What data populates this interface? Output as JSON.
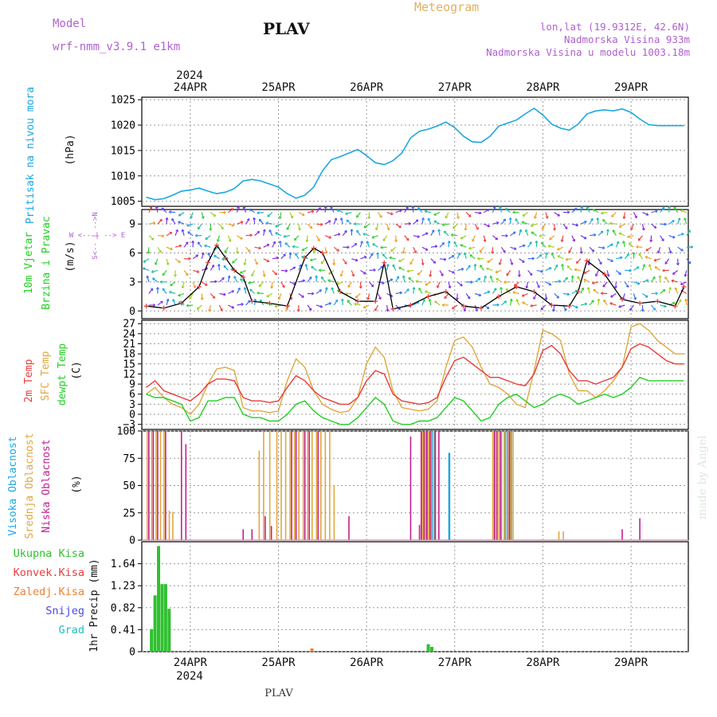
{
  "header": {
    "model_label": "Model",
    "model_name": "wrf-nmm_v3.9.1 e1km",
    "title": "PLAV",
    "meteogram": "Meteogram",
    "lonlat": "lon,lat (19.9312E, 42.6N)",
    "elevation": "Nadmorska Visina 933m",
    "model_elevation": "Nadmorska Visina u modelu 1003.18m",
    "year_top": "2024",
    "year_bottom": "2024",
    "footer_title": "PLAV",
    "credit": "made by Angel"
  },
  "colors": {
    "pressure": "#1ba7e0",
    "temp2m": "#e83c3c",
    "sfc_temp": "#e0a840",
    "dewpoint": "#22d022",
    "high_cloud": "#1ba7e0",
    "mid_cloud": "#e0a840",
    "low_cloud": "#c02090",
    "total_precip": "#30c030",
    "conv_precip": "#e83c3c",
    "frozen_precip": "#f08030",
    "snow": "#4a4ae0",
    "graupel": "#20c0c0",
    "model_text": "#b060d0",
    "meteogram_text": "#e0b060"
  },
  "chart_data": [
    {
      "type": "line",
      "panel": "pressure",
      "ylabel_main": "Pritisak na nivou mora",
      "unit": "(hPa)",
      "ylim": [
        1004,
        1025.5
      ],
      "yticks": [
        "1005",
        "1010",
        "1015",
        "1020",
        "1025"
      ],
      "ytick_values": [
        1005,
        1010,
        1015,
        1020,
        1025
      ],
      "x": [
        0,
        0.1,
        0.2,
        0.3,
        0.4,
        0.5,
        0.6,
        0.7,
        0.8,
        0.9,
        1.0,
        1.1,
        1.2,
        1.3,
        1.4,
        1.5,
        1.6,
        1.7,
        1.8,
        1.9,
        2.0,
        2.1,
        2.2,
        2.3,
        2.4,
        2.5,
        2.6,
        2.7,
        2.8,
        2.9,
        3.0,
        3.1,
        3.2,
        3.3,
        3.4,
        3.5,
        3.6,
        3.7,
        3.8,
        3.9,
        4.0,
        4.1,
        4.2,
        4.3,
        4.4,
        4.5,
        4.6,
        4.7,
        4.8,
        4.9,
        5.0,
        5.1,
        5.2,
        5.3,
        5.4,
        5.5,
        5.6,
        5.7,
        5.8,
        5.9,
        6.0,
        6.1
      ],
      "series": [
        {
          "name": "pressure",
          "values": [
            1005.8,
            1005.3,
            1005.5,
            1006.2,
            1007.0,
            1007.2,
            1007.6,
            1007.0,
            1006.5,
            1006.8,
            1007.5,
            1009.0,
            1009.3,
            1009.0,
            1008.4,
            1007.8,
            1006.5,
            1005.6,
            1006.2,
            1007.8,
            1011.0,
            1013.2,
            1013.8,
            1014.5,
            1015.2,
            1014.0,
            1012.6,
            1012.2,
            1013.0,
            1014.5,
            1017.5,
            1018.8,
            1019.2,
            1019.8,
            1020.6,
            1019.5,
            1017.8,
            1016.7,
            1016.6,
            1017.8,
            1019.8,
            1020.4,
            1021.0,
            1022.2,
            1023.3,
            1022.0,
            1020.2,
            1019.4,
            1019.0,
            1020.2,
            1022.2,
            1022.8,
            1023.0,
            1022.8,
            1023.2,
            1022.5,
            1021.2,
            1020.1,
            1019.9,
            1019.9,
            1019.9,
            1019.9
          ]
        }
      ]
    },
    {
      "type": "scatter",
      "panel": "wind",
      "ylabel_main": "10m Vjetar",
      "ylabel_sub": "Brzina i Pravac",
      "unit": "(m/s)",
      "compass_ns": "S<-- | -->N",
      "compass_we": "W <-- | --> E",
      "ylim": [
        -0.8,
        10.5
      ],
      "yticks": [
        "0",
        "3",
        "6",
        "9"
      ],
      "ytick_values": [
        0,
        3,
        6,
        9
      ],
      "x": [
        0,
        0.2,
        0.4,
        0.6,
        0.7,
        0.8,
        0.9,
        1.0,
        1.1,
        1.2,
        1.4,
        1.6,
        1.8,
        1.9,
        2.0,
        2.2,
        2.4,
        2.6,
        2.7,
        2.8,
        3.0,
        3.2,
        3.4,
        3.6,
        3.8,
        4.0,
        4.2,
        4.4,
        4.6,
        4.8,
        4.9,
        5.0,
        5.2,
        5.4,
        5.6,
        5.8,
        6.0,
        6.1
      ],
      "series": [
        {
          "name": "wind_speed",
          "values": [
            0.5,
            0.3,
            0.8,
            2.5,
            5.0,
            6.8,
            5.5,
            4.2,
            3.5,
            1.0,
            0.8,
            0.5,
            5.5,
            6.5,
            6.0,
            2.0,
            1.0,
            1.0,
            5.0,
            0.2,
            0.6,
            1.5,
            2.0,
            0.5,
            0.3,
            1.5,
            2.5,
            2.0,
            0.6,
            0.5,
            2.0,
            5.2,
            3.8,
            1.2,
            0.8,
            1.0,
            0.5,
            2.5
          ]
        }
      ]
    },
    {
      "type": "line",
      "panel": "temperature",
      "ylabel_main": "2m Temp",
      "ylabel_sub": "SFC Temp",
      "ylabel_sub2": "dewpt Temp",
      "unit": "(C)",
      "ylim": [
        -4.5,
        28
      ],
      "yticks": [
        "−3",
        "0",
        "3",
        "6",
        "9",
        "12",
        "15",
        "18",
        "21",
        "24",
        "27"
      ],
      "ytick_values": [
        -3,
        0,
        3,
        6,
        9,
        12,
        15,
        18,
        21,
        24,
        27
      ],
      "x": [
        0,
        0.1,
        0.2,
        0.3,
        0.4,
        0.5,
        0.6,
        0.7,
        0.8,
        0.9,
        1.0,
        1.1,
        1.2,
        1.3,
        1.4,
        1.5,
        1.6,
        1.7,
        1.8,
        1.9,
        2.0,
        2.1,
        2.2,
        2.3,
        2.4,
        2.5,
        2.6,
        2.7,
        2.8,
        2.9,
        3.0,
        3.1,
        3.2,
        3.3,
        3.4,
        3.5,
        3.6,
        3.7,
        3.8,
        3.9,
        4.0,
        4.1,
        4.2,
        4.3,
        4.4,
        4.5,
        4.6,
        4.7,
        4.8,
        4.9,
        5.0,
        5.1,
        5.2,
        5.3,
        5.4,
        5.5,
        5.6,
        5.7,
        5.8,
        5.9,
        6.0,
        6.1
      ],
      "series": [
        {
          "name": "2m_temp",
          "values": [
            8,
            10,
            7,
            6,
            5,
            4,
            6,
            9,
            10.5,
            10.5,
            10,
            5,
            4,
            4,
            3.5,
            4,
            8,
            11.5,
            10,
            7,
            5,
            4,
            3,
            3,
            5,
            10,
            13,
            12,
            6,
            4,
            3.5,
            3,
            3.5,
            5,
            11,
            16,
            17,
            15,
            13,
            11,
            11,
            10,
            9,
            8.5,
            12,
            19,
            20.5,
            18,
            13,
            10,
            10,
            9,
            10,
            11,
            14,
            19.5,
            21,
            20,
            18,
            16,
            15,
            15
          ]
        },
        {
          "name": "sfc_temp",
          "values": [
            6,
            8,
            5,
            3,
            2,
            0,
            3,
            9,
            13.5,
            14,
            13,
            2,
            1,
            1,
            0.5,
            1,
            10,
            16.5,
            14,
            7,
            3,
            1.5,
            0.5,
            1,
            5,
            15,
            20,
            17,
            7,
            2,
            1.5,
            1,
            1.5,
            4,
            14,
            22,
            23,
            20,
            14,
            9,
            8,
            6,
            3,
            2,
            13,
            25,
            24,
            22,
            12,
            7,
            7,
            5,
            7,
            10,
            14,
            26,
            27,
            25,
            22,
            20,
            18,
            18
          ]
        },
        {
          "name": "dewpt_temp",
          "values": [
            6,
            5,
            5,
            4,
            3,
            -2,
            -1,
            4,
            4,
            5,
            5,
            0,
            -1,
            -1,
            -2,
            -2,
            0,
            3,
            4,
            1,
            -1,
            -2,
            -3,
            -3,
            -1,
            2,
            5,
            3,
            -2,
            -3,
            -3,
            -2,
            -2,
            -1,
            2,
            5,
            4,
            1,
            -2,
            -1,
            3,
            5,
            6,
            4,
            2,
            3,
            5,
            6,
            5,
            3,
            4,
            5,
            6,
            5,
            6,
            8,
            11,
            10,
            10,
            10,
            10,
            10
          ]
        }
      ]
    },
    {
      "type": "bar",
      "panel": "clouds",
      "ylabel_main": "Visoka Oblacnost",
      "ylabel_sub": "Srednja Oblacnost",
      "ylabel_sub2": "Niska Oblacnost",
      "unit": "(%)",
      "ylim": [
        0,
        100
      ],
      "yticks": [
        "0",
        "25",
        "50",
        "75",
        "100"
      ],
      "ytick_values": [
        0,
        25,
        50,
        75,
        100
      ],
      "x": [
        0.03,
        0.08,
        0.13,
        0.18,
        0.22,
        0.28,
        0.32,
        0.4,
        0.45,
        1.1,
        1.2,
        1.3,
        1.35,
        1.42,
        1.5,
        1.55,
        1.6,
        1.65,
        1.7,
        1.75,
        1.8,
        1.85,
        1.9,
        1.95,
        2.0,
        2.05,
        2.1,
        2.15,
        2.2,
        2.25,
        2.3,
        3.0,
        3.1,
        3.12,
        3.15,
        3.18,
        3.22,
        3.25,
        3.28,
        3.32,
        3.35,
        3.38,
        3.42,
        3.48,
        3.95,
        3.98,
        4.02,
        4.05,
        4.08,
        4.12,
        4.15,
        4.18,
        4.22,
        4.25,
        4.7,
        4.75,
        5.4,
        5.6
      ],
      "series": [
        {
          "name": "high",
          "values": [
            0,
            0,
            0,
            0,
            0,
            0,
            0,
            0,
            0,
            0,
            0,
            0,
            0,
            0,
            0,
            0,
            0,
            0,
            0,
            0,
            0,
            0,
            0,
            0,
            0,
            0,
            0,
            0,
            0,
            0,
            0,
            0,
            0,
            0,
            0,
            100,
            100,
            100,
            0,
            0,
            0,
            0,
            80,
            0,
            0,
            0,
            0,
            100,
            100,
            100,
            0,
            0,
            0,
            0,
            0,
            0,
            0,
            0
          ]
        },
        {
          "name": "mid",
          "values": [
            100,
            100,
            100,
            100,
            100,
            27,
            26,
            0,
            0,
            0,
            0,
            82,
            100,
            100,
            100,
            100,
            100,
            100,
            100,
            100,
            100,
            100,
            100,
            100,
            100,
            100,
            100,
            50,
            0,
            0,
            0,
            0,
            0,
            0,
            100,
            100,
            100,
            100,
            100,
            0,
            0,
            0,
            0,
            0,
            100,
            100,
            100,
            100,
            100,
            100,
            100,
            100,
            0,
            0,
            8,
            8,
            0,
            0
          ]
        },
        {
          "name": "low",
          "values": [
            100,
            100,
            100,
            0,
            100,
            0,
            0,
            100,
            88,
            10,
            10,
            0,
            22,
            13,
            0,
            0,
            0,
            100,
            100,
            0,
            100,
            100,
            0,
            100,
            0,
            0,
            0,
            0,
            0,
            0,
            22,
            95,
            14,
            100,
            100,
            100,
            100,
            0,
            100,
            100,
            0,
            0,
            0,
            0,
            100,
            100,
            100,
            0,
            0,
            100,
            0,
            0,
            0,
            0,
            0,
            0,
            10,
            20
          ]
        }
      ]
    },
    {
      "type": "bar",
      "panel": "precip",
      "ylabel_main": "1hr Precip",
      "unit": "(mm)",
      "legend": [
        "Ukupna Kisa",
        "Konvek.Kisa",
        "Zaledj.Kisa",
        "Snijeg",
        "Grad"
      ],
      "ylim": [
        0,
        2.05
      ],
      "yticks": [
        "0",
        "0.41",
        "0.82",
        "1.23",
        "1.64"
      ],
      "ytick_values": [
        0,
        0.41,
        0.82,
        1.23,
        1.64
      ],
      "x": [
        0.06,
        0.1,
        0.14,
        0.18,
        0.22,
        0.26,
        1.88,
        3.2,
        3.24
      ],
      "series": [
        {
          "name": "total_rain",
          "values": [
            0.42,
            1.05,
            1.97,
            1.26,
            1.26,
            0.8,
            0.05,
            0.14,
            0.09
          ]
        },
        {
          "name": "frozen_rain",
          "values": [
            0,
            0,
            0,
            0,
            0,
            0,
            0.06,
            0,
            0
          ]
        }
      ]
    }
  ],
  "x_axis": {
    "labels": [
      "24APR",
      "25APR",
      "26APR",
      "27APR",
      "28APR",
      "29APR"
    ],
    "label_values": [
      0.5,
      1.5,
      2.5,
      3.5,
      4.5,
      5.5
    ],
    "range": [
      -0.05,
      6.15
    ]
  }
}
